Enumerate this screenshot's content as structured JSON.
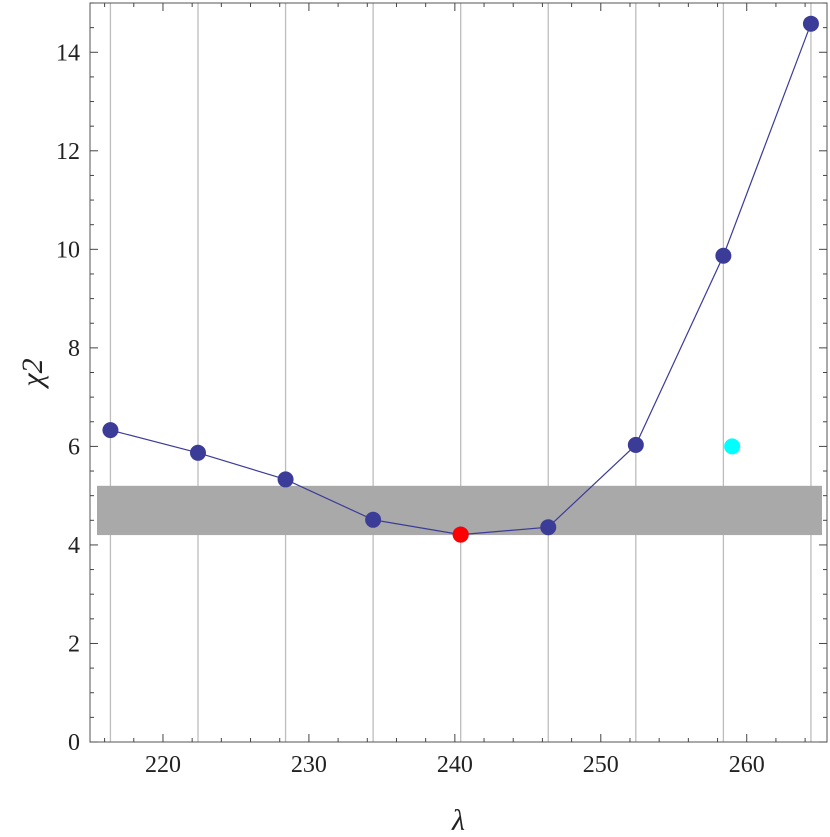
{
  "chart_data": {
    "type": "line",
    "xlabel": "λ",
    "ylabel": "χ2",
    "xlim": [
      215,
      265.5
    ],
    "ylim": [
      0,
      15
    ],
    "x_ticks": [
      220,
      230,
      240,
      250,
      260
    ],
    "y_ticks": [
      0,
      2,
      4,
      6,
      8,
      10,
      12,
      14
    ],
    "vertical_gridlines": [
      216.4,
      222.4,
      228.4,
      234.4,
      240.4,
      246.4,
      252.4,
      258.4,
      264.4
    ],
    "band": {
      "y_low": 4.2,
      "y_high": 5.2,
      "color": "#a9a9a9"
    },
    "series": [
      {
        "color": "#3b3b98",
        "x": [
          216.4,
          222.4,
          228.4,
          234.4,
          240.4,
          246.4,
          252.4,
          258.4,
          264.4
        ],
        "y": [
          6.33,
          5.87,
          5.33,
          4.51,
          4.21,
          4.36,
          6.03,
          9.87,
          14.58
        ]
      }
    ],
    "highlight_points": [
      {
        "x": 240.4,
        "y": 4.21,
        "color": "#ff0000"
      },
      {
        "x": 259.0,
        "y": 6.0,
        "color": "#00ffff"
      }
    ]
  }
}
